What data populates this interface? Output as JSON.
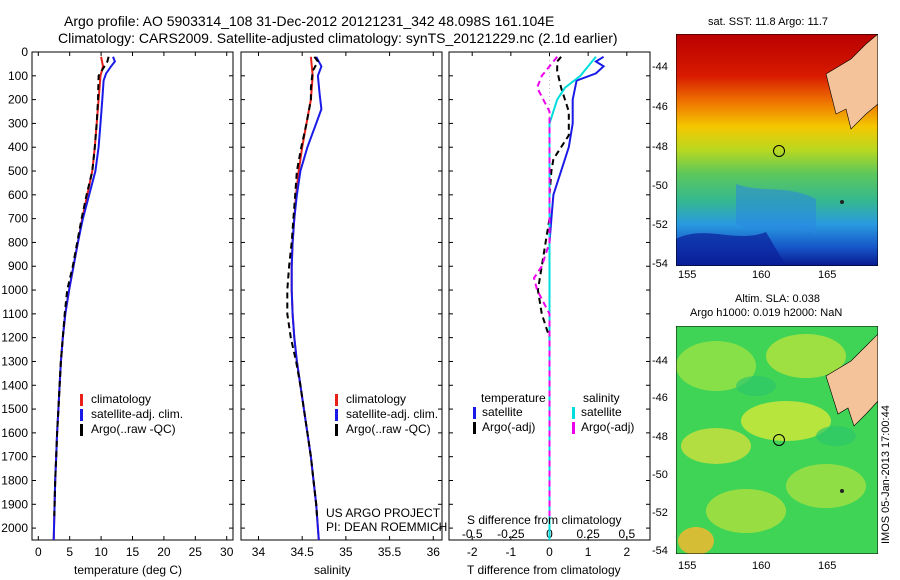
{
  "header": {
    "line1": "Argo profile: AO 5903314_108 31-Dec-2012 20121231_342 48.098S 161.104E",
    "line2": "Climatology: CARS2009. Satellite-adjusted climatology: synTS_20121229.nc (2.1d earlier)"
  },
  "colors": {
    "climatology": "#e8201a",
    "satellite": "#1a1ae8",
    "argo": "#000000",
    "sat_salinity": "#00dddd",
    "argo_salinity": "#ee00ee"
  },
  "panels": {
    "temperature": {
      "xlabel": "temperature (deg C)"
    },
    "salinity": {
      "xlabel": "salinity",
      "credit1": "US ARGO PROJECT",
      "credit2": "PI: DEAN ROEMMICH"
    },
    "difference": {
      "xlabel_top": "S difference from climatology",
      "xlabel_bottom": "T difference from climatology"
    }
  },
  "legend_profiles": [
    "climatology",
    "satellite-adj. clim.",
    "Argo(..raw -QC)"
  ],
  "legend_diff": {
    "temp_title": "temperature",
    "temp_sat": "satellite",
    "temp_argo": "Argo(-adj)",
    "sal_title": "salinity",
    "sal_sat": "satellite",
    "sal_argo": "Argo(-adj)"
  },
  "maps": {
    "sst_title": "sat. SST: 11.8 Argo: 11.7",
    "sla_title1": "Altim. SLA: 0.038",
    "sla_title2": "Argo h1000: 0.019 h2000: NaN",
    "yticks": [
      "-44",
      "-46",
      "-48",
      "-50",
      "-52",
      "-54"
    ],
    "xticks": [
      "155",
      "160",
      "165"
    ],
    "stamp": "IMOS 05-Jan-2013 17:00:44"
  },
  "chart_data": [
    {
      "type": "line",
      "title": "",
      "xlabel": "temperature (deg C)",
      "ylabel": "",
      "xlim": [
        -1,
        31
      ],
      "ylim": [
        2050,
        0
      ],
      "xticks": [
        0,
        5,
        10,
        15,
        20,
        25,
        30
      ],
      "yticks": [
        0,
        100,
        200,
        300,
        400,
        500,
        600,
        700,
        800,
        900,
        1000,
        1100,
        1200,
        1300,
        1400,
        1500,
        1600,
        1700,
        1800,
        1900,
        2000
      ],
      "series": [
        {
          "name": "climatology",
          "color": "#e8201a",
          "points": [
            [
              10,
              20
            ],
            [
              10.3,
              60
            ],
            [
              9.9,
              100
            ],
            [
              9.6,
              200
            ],
            [
              9.3,
              300
            ],
            [
              9.0,
              400
            ],
            [
              8.6,
              500
            ],
            [
              7.8,
              600
            ],
            [
              7.0,
              700
            ],
            [
              6.3,
              800
            ],
            [
              5.6,
              900
            ],
            [
              4.9,
              1000
            ],
            [
              4.3,
              1100
            ],
            [
              3.9,
              1200
            ],
            [
              3.6,
              1300
            ],
            [
              3.4,
              1400
            ],
            [
              3.2,
              1500
            ],
            [
              3.0,
              1600
            ],
            [
              2.85,
              1700
            ],
            [
              2.7,
              1800
            ],
            [
              2.6,
              1900
            ],
            [
              2.5,
              2000
            ],
            [
              2.45,
              2050
            ]
          ]
        },
        {
          "name": "satellite-adj. clim.",
          "color": "#1a1ae8",
          "points": [
            [
              11.9,
              20
            ],
            [
              12.2,
              40
            ],
            [
              11.6,
              60
            ],
            [
              10.8,
              90
            ],
            [
              10.4,
              120
            ],
            [
              10.2,
              200
            ],
            [
              9.9,
              300
            ],
            [
              9.6,
              400
            ],
            [
              9.1,
              500
            ],
            [
              8.1,
              600
            ],
            [
              7.1,
              700
            ],
            [
              6.3,
              800
            ],
            [
              5.6,
              900
            ],
            [
              4.9,
              1000
            ],
            [
              4.3,
              1100
            ],
            [
              3.9,
              1200
            ],
            [
              3.6,
              1300
            ],
            [
              3.4,
              1400
            ],
            [
              3.2,
              1500
            ],
            [
              3.0,
              1600
            ],
            [
              2.85,
              1700
            ],
            [
              2.7,
              1800
            ],
            [
              2.6,
              1900
            ],
            [
              2.5,
              2000
            ],
            [
              2.45,
              2050
            ]
          ]
        },
        {
          "name": "Argo(..raw -QC)",
          "color": "#000000",
          "points": [
            [
              11.2,
              20
            ],
            [
              11.0,
              40
            ],
            [
              10.3,
              70
            ],
            [
              9.6,
              100
            ],
            [
              9.5,
              200
            ],
            [
              9.3,
              300
            ],
            [
              9.0,
              400
            ],
            [
              8.6,
              500
            ],
            [
              7.7,
              600
            ],
            [
              6.9,
              700
            ],
            [
              6.2,
              800
            ],
            [
              5.5,
              900
            ],
            [
              4.6,
              1000
            ],
            [
              4.2,
              1100
            ],
            [
              3.9,
              1200
            ],
            [
              3.6,
              1300
            ],
            [
              3.4,
              1400
            ],
            [
              3.2,
              1500
            ],
            [
              3.0,
              1600
            ],
            [
              2.85,
              1700
            ],
            [
              2.7,
              1800
            ],
            [
              2.6,
              1900
            ],
            [
              2.55,
              1950
            ]
          ]
        }
      ]
    },
    {
      "type": "line",
      "title": "",
      "xlabel": "salinity",
      "ylabel": "",
      "xlim": [
        33.8,
        36.1
      ],
      "ylim": [
        2050,
        0
      ],
      "xticks": [
        34,
        34.5,
        35,
        35.5,
        36
      ],
      "series": [
        {
          "name": "climatology",
          "color": "#e8201a",
          "points": [
            [
              34.6,
              20
            ],
            [
              34.62,
              100
            ],
            [
              34.6,
              200
            ],
            [
              34.55,
              300
            ],
            [
              34.5,
              400
            ],
            [
              34.46,
              500
            ],
            [
              34.43,
              600
            ],
            [
              34.41,
              700
            ],
            [
              34.39,
              800
            ],
            [
              34.38,
              900
            ],
            [
              34.38,
              1000
            ],
            [
              34.39,
              1100
            ],
            [
              34.41,
              1200
            ],
            [
              34.44,
              1300
            ],
            [
              34.48,
              1400
            ],
            [
              34.52,
              1500
            ],
            [
              34.56,
              1600
            ],
            [
              34.6,
              1700
            ],
            [
              34.63,
              1800
            ],
            [
              34.66,
              1900
            ],
            [
              34.68,
              2000
            ],
            [
              34.69,
              2050
            ]
          ]
        },
        {
          "name": "satellite-adj. clim.",
          "color": "#1a1ae8",
          "points": [
            [
              34.66,
              20
            ],
            [
              34.72,
              60
            ],
            [
              34.68,
              100
            ],
            [
              34.7,
              180
            ],
            [
              34.72,
              240
            ],
            [
              34.66,
              300
            ],
            [
              34.56,
              400
            ],
            [
              34.48,
              500
            ],
            [
              34.44,
              600
            ],
            [
              34.41,
              700
            ],
            [
              34.39,
              800
            ],
            [
              34.38,
              900
            ],
            [
              34.38,
              1000
            ],
            [
              34.39,
              1100
            ],
            [
              34.41,
              1200
            ],
            [
              34.44,
              1300
            ],
            [
              34.48,
              1400
            ],
            [
              34.52,
              1500
            ],
            [
              34.56,
              1600
            ],
            [
              34.6,
              1700
            ],
            [
              34.63,
              1800
            ],
            [
              34.66,
              1900
            ],
            [
              34.68,
              2000
            ],
            [
              34.69,
              2050
            ]
          ]
        },
        {
          "name": "Argo(..raw -QC)",
          "color": "#000000",
          "points": [
            [
              34.64,
              20
            ],
            [
              34.68,
              40
            ],
            [
              34.62,
              80
            ],
            [
              34.6,
              150
            ],
            [
              34.6,
              200
            ],
            [
              34.55,
              300
            ],
            [
              34.49,
              400
            ],
            [
              34.44,
              500
            ],
            [
              34.42,
              600
            ],
            [
              34.4,
              700
            ],
            [
              34.38,
              800
            ],
            [
              34.35,
              900
            ],
            [
              34.33,
              1000
            ],
            [
              34.33,
              1100
            ],
            [
              34.37,
              1200
            ],
            [
              34.43,
              1300
            ],
            [
              34.48,
              1400
            ],
            [
              34.52,
              1500
            ],
            [
              34.56,
              1600
            ],
            [
              34.6,
              1700
            ],
            [
              34.63,
              1800
            ],
            [
              34.66,
              1900
            ],
            [
              34.67,
              1950
            ]
          ]
        }
      ]
    },
    {
      "type": "line",
      "title": "",
      "xlabel": "T difference from climatology",
      "xlabel2": "S difference from climatology",
      "ylabel": "",
      "xlim": [
        -2.6,
        2.6
      ],
      "ylim": [
        2050,
        0
      ],
      "xticks": [
        -2,
        -1,
        0,
        1,
        2
      ],
      "xticks_s": [
        -0.5,
        -0.25,
        0,
        0.25,
        0.5
      ],
      "series": [
        {
          "name": "temperature satellite",
          "color": "#1a1ae8",
          "points": [
            [
              1.4,
              20
            ],
            [
              1.2,
              40
            ],
            [
              1.4,
              60
            ],
            [
              1.2,
              90
            ],
            [
              0.7,
              120
            ],
            [
              0.6,
              200
            ],
            [
              0.6,
              300
            ],
            [
              0.5,
              400
            ],
            [
              0.3,
              500
            ],
            [
              0.1,
              600
            ],
            [
              0.05,
              700
            ],
            [
              0,
              800
            ],
            [
              0,
              900
            ],
            [
              0,
              1000
            ],
            [
              0,
              1100
            ],
            [
              0,
              1200
            ],
            [
              0,
              1300
            ],
            [
              0,
              1400
            ],
            [
              0,
              1500
            ],
            [
              0,
              1600
            ],
            [
              0,
              1700
            ],
            [
              0,
              1800
            ],
            [
              0,
              1900
            ],
            [
              0,
              2050
            ]
          ]
        },
        {
          "name": "temperature Argo(-adj)",
          "color": "#000000",
          "points": [
            [
              0.3,
              20
            ],
            [
              0.2,
              40
            ],
            [
              0.2,
              80
            ],
            [
              0.3,
              150
            ],
            [
              0.5,
              250
            ],
            [
              0.5,
              350
            ],
            [
              0.3,
              400
            ],
            [
              0.1,
              450
            ],
            [
              0.05,
              500
            ],
            [
              0,
              600
            ],
            [
              0,
              700
            ],
            [
              -0.1,
              800
            ],
            [
              -0.2,
              900
            ],
            [
              -0.3,
              1000
            ],
            [
              -0.2,
              1100
            ],
            [
              0,
              1200
            ],
            [
              0,
              1300
            ],
            [
              0,
              1400
            ],
            [
              0,
              1600
            ],
            [
              0,
              1800
            ],
            [
              0,
              1950
            ]
          ]
        },
        {
          "name": "salinity satellite",
          "color": "#00dddd",
          "points": [
            [
              0.3,
              20
            ],
            [
              0.25,
              60
            ],
            [
              0.2,
              100
            ],
            [
              0.1,
              150
            ],
            [
              0.05,
              200
            ],
            [
              0,
              300
            ],
            [
              0,
              500
            ],
            [
              0,
              800
            ],
            [
              0,
              1200
            ],
            [
              0,
              1600
            ],
            [
              0,
              2050
            ]
          ]
        },
        {
          "name": "salinity Argo(-adj)",
          "color": "#ee00ee",
          "points": [
            [
              0.05,
              20
            ],
            [
              0,
              60
            ],
            [
              -0.05,
              100
            ],
            [
              -0.08,
              150
            ],
            [
              0,
              250
            ],
            [
              0,
              500
            ],
            [
              0,
              800
            ],
            [
              -0.05,
              900
            ],
            [
              -0.1,
              950
            ],
            [
              -0.08,
              1000
            ],
            [
              0,
              1100
            ],
            [
              0,
              1300
            ],
            [
              0,
              1600
            ],
            [
              0,
              1950
            ]
          ]
        }
      ]
    }
  ]
}
